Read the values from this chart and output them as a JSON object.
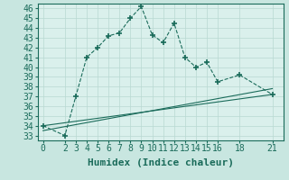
{
  "title": "",
  "xlabel": "Humidex (Indice chaleur)",
  "ylabel": "",
  "background_color": "#c8e6e0",
  "plot_bg_color": "#daf0ec",
  "grid_color": "#b8d8d2",
  "line_color": "#1a6b5a",
  "xlim": [
    -0.5,
    22
  ],
  "ylim": [
    32.5,
    46.5
  ],
  "xticks": [
    0,
    2,
    3,
    4,
    5,
    6,
    7,
    8,
    9,
    10,
    11,
    12,
    13,
    14,
    15,
    16,
    18,
    21
  ],
  "yticks": [
    33,
    34,
    35,
    36,
    37,
    38,
    39,
    40,
    41,
    42,
    43,
    44,
    45,
    46
  ],
  "line1_x": [
    0,
    2,
    3,
    4,
    5,
    6,
    7,
    8,
    9,
    10,
    11,
    12,
    13,
    14,
    15,
    16,
    18,
    21
  ],
  "line1_y": [
    34.0,
    33.0,
    37.0,
    41.0,
    42.0,
    43.2,
    43.5,
    45.0,
    46.2,
    43.3,
    42.5,
    44.5,
    41.0,
    40.0,
    40.5,
    38.5,
    39.2,
    37.2
  ],
  "line2_x": [
    0,
    21
  ],
  "line2_y": [
    34.0,
    37.2
  ],
  "line3_x": [
    0,
    21
  ],
  "line3_y": [
    33.5,
    37.8
  ],
  "font_size": 7,
  "label_font_size": 8
}
